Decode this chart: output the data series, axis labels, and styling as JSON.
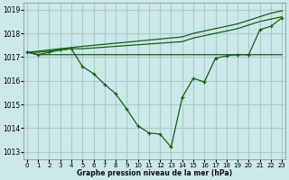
{
  "title": "Graphe pression niveau de la mer (hPa)",
  "background_color": "#cce8e8",
  "grid_color": "#aacccc",
  "line_color": "#1a5c1a",
  "xlim": [
    -0.3,
    23.3
  ],
  "ylim": [
    1012.7,
    1019.3
  ],
  "yticks": [
    1013,
    1014,
    1015,
    1016,
    1017,
    1018,
    1019
  ],
  "xtick_labels": [
    "0",
    "1",
    "2",
    "3",
    "4",
    "5",
    "6",
    "7",
    "8",
    "9",
    "10",
    "11",
    "12",
    "13",
    "14",
    "15",
    "16",
    "17",
    "18",
    "19",
    "20",
    "21",
    "22",
    "23"
  ],
  "line1_x": [
    0,
    1,
    2,
    3,
    4,
    5,
    14,
    15,
    16,
    17,
    18,
    19,
    20,
    21,
    22,
    23
  ],
  "line1_y": [
    1017.2,
    1017.1,
    1017.1,
    1017.1,
    1017.1,
    1017.1,
    1017.1,
    1017.1,
    1017.1,
    1017.1,
    1017.1,
    1017.1,
    1017.1,
    1017.1,
    1017.1,
    1017.1
  ],
  "line2_x": [
    0,
    1,
    2,
    3,
    4,
    5,
    14,
    15,
    16,
    17,
    18,
    19,
    20,
    21,
    22,
    23
  ],
  "line2_y": [
    1017.2,
    1017.25,
    1017.3,
    1017.35,
    1017.4,
    1017.45,
    1017.85,
    1018.0,
    1018.1,
    1018.2,
    1018.3,
    1018.4,
    1018.55,
    1018.7,
    1018.85,
    1018.95
  ],
  "line3_x": [
    0,
    1,
    2,
    3,
    4,
    5,
    14,
    15,
    16,
    17,
    18,
    19,
    20,
    21,
    22,
    23
  ],
  "line3_y": [
    1017.2,
    1017.2,
    1017.25,
    1017.3,
    1017.35,
    1017.35,
    1017.65,
    1017.8,
    1017.9,
    1018.0,
    1018.1,
    1018.2,
    1018.35,
    1018.5,
    1018.6,
    1018.7
  ],
  "main_x": [
    0,
    1,
    2,
    3,
    4,
    5,
    6,
    7,
    8,
    9,
    10,
    11,
    12,
    13,
    14,
    15,
    16,
    17,
    18,
    19,
    20,
    21,
    22,
    23
  ],
  "main_y": [
    1017.2,
    1017.1,
    1017.2,
    1017.3,
    1017.35,
    1016.6,
    1016.3,
    1015.85,
    1015.45,
    1014.8,
    1014.1,
    1013.8,
    1013.75,
    1013.2,
    1015.3,
    1016.1,
    1015.95,
    1016.95,
    1017.05,
    1017.1,
    1017.1,
    1018.15,
    1018.3,
    1018.65
  ]
}
